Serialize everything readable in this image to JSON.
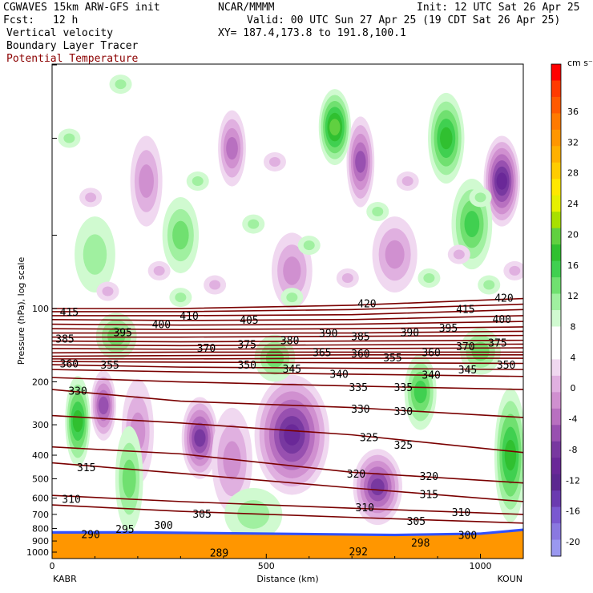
{
  "header": {
    "model": "CGWAVES 15km ARW-GFS init",
    "org": "NCAR/MMMM",
    "init": "Init: 12 UTC Sat 26 Apr 25",
    "fcst_label": "Fcst:",
    "fcst_value": "12 h",
    "valid": "Valid: 00 UTC Sun 27 Apr 25 (19 CDT Sat 26 Apr 25)",
    "xy": "XY= 187.4,173.8 to 191.8,100.1",
    "fields": [
      "Vertical velocity",
      "Boundary Layer Tracer",
      "Potential Temperature"
    ],
    "field_colors": [
      "#000000",
      "#000000",
      "#8b0000"
    ]
  },
  "chart_data": {
    "type": "heatmap",
    "xlabel": "Distance (km)",
    "ylabel": "Pressure (hPa), log scale",
    "xlim": [
      0,
      1100
    ],
    "x_ticks": [
      "0",
      "500",
      "1000"
    ],
    "x_tick_values": [
      0,
      500,
      1000
    ],
    "y_ticks": [
      "100",
      "200",
      "300",
      "400",
      "500",
      "600",
      "700",
      "800",
      "900",
      "1000"
    ],
    "y_tick_values": [
      100,
      200,
      300,
      400,
      500,
      600,
      700,
      800,
      900,
      1000
    ],
    "left_endpoint": "KABR",
    "right_endpoint": "KOUN",
    "colorbar": {
      "unit": "cm s⁻¹",
      "labels": [
        "36",
        "32",
        "28",
        "24",
        "20",
        "16",
        "12",
        "8",
        "4",
        "0",
        "-4",
        "-8",
        "-12",
        "-16",
        "-20"
      ],
      "colors": [
        "#ff0000",
        "#ff3a00",
        "#ff5a00",
        "#ff7a00",
        "#ff9600",
        "#ffb000",
        "#ffcc00",
        "#ffe800",
        "#e6f000",
        "#a8e000",
        "#60d040",
        "#30c030",
        "#40d050",
        "#70e070",
        "#a0f0a0",
        "#d0fad0",
        "#ffffff",
        "#ffffff",
        "#f0d8f0",
        "#e0b0e0",
        "#d090d0",
        "#b870c0",
        "#9850b0",
        "#7838a0",
        "#6a2898",
        "#5c2890",
        "#6a3ab0",
        "#7a58d0",
        "#8a78e0",
        "#9a98f0"
      ]
    },
    "theta_labels": [
      {
        "text": "415",
        "x": 40,
        "p": 104
      },
      {
        "text": "410",
        "x": 320,
        "p": 108
      },
      {
        "text": "405",
        "x": 460,
        "p": 112
      },
      {
        "text": "420",
        "x": 735,
        "p": 96
      },
      {
        "text": "415",
        "x": 965,
        "p": 101
      },
      {
        "text": "420",
        "x": 1055,
        "p": 91
      },
      {
        "text": "400",
        "x": 255,
        "p": 117
      },
      {
        "text": "400",
        "x": 1050,
        "p": 111
      },
      {
        "text": "395",
        "x": 165,
        "p": 126
      },
      {
        "text": "395",
        "x": 925,
        "p": 121
      },
      {
        "text": "390",
        "x": 645,
        "p": 127
      },
      {
        "text": "390",
        "x": 835,
        "p": 126
      },
      {
        "text": "385",
        "x": 30,
        "p": 134
      },
      {
        "text": "385",
        "x": 720,
        "p": 131
      },
      {
        "text": "380",
        "x": 555,
        "p": 136
      },
      {
        "text": "375",
        "x": 455,
        "p": 141
      },
      {
        "text": "375",
        "x": 1040,
        "p": 139
      },
      {
        "text": "370",
        "x": 360,
        "p": 146
      },
      {
        "text": "370",
        "x": 965,
        "p": 144
      },
      {
        "text": "365",
        "x": 630,
        "p": 152
      },
      {
        "text": "360",
        "x": 40,
        "p": 169
      },
      {
        "text": "360",
        "x": 720,
        "p": 154
      },
      {
        "text": "360",
        "x": 885,
        "p": 152
      },
      {
        "text": "355",
        "x": 135,
        "p": 171
      },
      {
        "text": "355",
        "x": 795,
        "p": 160
      },
      {
        "text": "350",
        "x": 455,
        "p": 171
      },
      {
        "text": "350",
        "x": 1060,
        "p": 171
      },
      {
        "text": "345",
        "x": 560,
        "p": 178
      },
      {
        "text": "345",
        "x": 970,
        "p": 179
      },
      {
        "text": "340",
        "x": 670,
        "p": 187
      },
      {
        "text": "340",
        "x": 885,
        "p": 188
      },
      {
        "text": "335",
        "x": 715,
        "p": 212
      },
      {
        "text": "335",
        "x": 820,
        "p": 212
      },
      {
        "text": "330",
        "x": 60,
        "p": 219
      },
      {
        "text": "330",
        "x": 720,
        "p": 260
      },
      {
        "text": "330",
        "x": 820,
        "p": 266
      },
      {
        "text": "325",
        "x": 740,
        "p": 340
      },
      {
        "text": "325",
        "x": 820,
        "p": 365
      },
      {
        "text": "320",
        "x": 710,
        "p": 480
      },
      {
        "text": "320",
        "x": 880,
        "p": 490
      },
      {
        "text": "315",
        "x": 80,
        "p": 452
      },
      {
        "text": "315",
        "x": 880,
        "p": 582
      },
      {
        "text": "310",
        "x": 45,
        "p": 610
      },
      {
        "text": "310",
        "x": 730,
        "p": 660
      },
      {
        "text": "310",
        "x": 955,
        "p": 690
      },
      {
        "text": "305",
        "x": 350,
        "p": 700
      },
      {
        "text": "305",
        "x": 850,
        "p": 750
      },
      {
        "text": "300",
        "x": 260,
        "p": 780
      },
      {
        "text": "300",
        "x": 970,
        "p": 855
      },
      {
        "text": "295",
        "x": 170,
        "p": 808
      },
      {
        "text": "290",
        "x": 90,
        "p": 850
      },
      {
        "text": "289",
        "x": 390,
        "p": 1010
      },
      {
        "text": "292",
        "x": 715,
        "p": 1000
      },
      {
        "text": "298",
        "x": 860,
        "p": 920
      }
    ],
    "theta_lines": [
      {
        "theta": 305,
        "x": [
          0,
          300,
          700,
          1100
        ],
        "p": [
          640,
          680,
          720,
          760
        ]
      },
      {
        "theta": 310,
        "x": [
          0,
          300,
          700,
          1100
        ],
        "p": [
          585,
          620,
          660,
          700
        ]
      },
      {
        "theta": 315,
        "x": [
          0,
          300,
          700,
          1100
        ],
        "p": [
          430,
          475,
          545,
          620
        ]
      },
      {
        "theta": 320,
        "x": [
          0,
          300,
          700,
          1100
        ],
        "p": [
          370,
          395,
          470,
          520
        ]
      },
      {
        "theta": 325,
        "x": [
          0,
          300,
          700,
          1100
        ],
        "p": [
          275,
          295,
          330,
          390
        ]
      },
      {
        "theta": 330,
        "x": [
          0,
          300,
          700,
          1100
        ],
        "p": [
          215,
          240,
          255,
          280
        ]
      },
      {
        "theta": 335,
        "x": [
          0,
          300,
          700,
          1100
        ],
        "p": [
          192,
          200,
          208,
          215
        ]
      },
      {
        "theta": 340,
        "x": [
          0,
          300,
          700,
          1100
        ],
        "p": [
          178,
          182,
          186,
          190
        ]
      },
      {
        "theta": 345,
        "x": [
          0,
          300,
          700,
          1100
        ],
        "p": [
          170,
          174,
          176,
          178
        ]
      },
      {
        "theta": 350,
        "x": [
          0,
          300,
          700,
          1100
        ],
        "p": [
          165,
          166,
          167,
          168
        ]
      },
      {
        "theta": 355,
        "x": [
          0,
          300,
          700,
          1100
        ],
        "p": [
          161,
          161,
          160,
          160
        ]
      },
      {
        "theta": 360,
        "x": [
          0,
          300,
          700,
          1100
        ],
        "p": [
          157,
          156,
          155,
          155
        ]
      },
      {
        "theta": 365,
        "x": [
          0,
          300,
          700,
          1100
        ],
        "p": [
          152,
          151,
          151,
          151
        ]
      },
      {
        "theta": 370,
        "x": [
          0,
          300,
          700,
          1100
        ],
        "p": [
          146,
          147,
          146,
          145
        ]
      },
      {
        "theta": 375,
        "x": [
          0,
          300,
          700,
          1100
        ],
        "p": [
          141,
          142,
          141,
          140
        ]
      },
      {
        "theta": 380,
        "x": [
          0,
          300,
          700,
          1100
        ],
        "p": [
          136,
          137,
          136,
          135
        ]
      },
      {
        "theta": 385,
        "x": [
          0,
          300,
          700,
          1100
        ],
        "p": [
          131,
          131,
          130,
          129
        ]
      },
      {
        "theta": 390,
        "x": [
          0,
          300,
          700,
          1100
        ],
        "p": [
          126,
          126,
          126,
          124
        ]
      },
      {
        "theta": 395,
        "x": [
          0,
          300,
          700,
          1100
        ],
        "p": [
          121,
          122,
          121,
          119
        ]
      },
      {
        "theta": 400,
        "x": [
          0,
          300,
          700,
          1100
        ],
        "p": [
          116,
          117,
          116,
          113
        ]
      },
      {
        "theta": 405,
        "x": [
          0,
          300,
          700,
          1100
        ],
        "p": [
          111,
          112,
          111,
          107
        ]
      },
      {
        "theta": 410,
        "x": [
          0,
          300,
          700,
          1100
        ],
        "p": [
          107,
          107,
          106,
          101
        ]
      },
      {
        "theta": 415,
        "x": [
          0,
          300,
          700,
          1100
        ],
        "p": [
          103,
          103,
          101,
          96
        ]
      },
      {
        "theta": 420,
        "x": [
          0,
          300,
          700,
          1100
        ],
        "p": [
          100,
          100,
          97,
          91
        ]
      }
    ],
    "blobs": [
      {
        "x": 120,
        "p": 250,
        "level": -7,
        "rx": 22,
        "rp": 0.18
      },
      {
        "x": 345,
        "p": 340,
        "level": -9,
        "rx": 35,
        "rp": 0.22
      },
      {
        "x": 560,
        "p": 330,
        "level": -11,
        "rx": 80,
        "rp": 0.35
      },
      {
        "x": 760,
        "p": 540,
        "level": -9,
        "rx": 50,
        "rp": 0.2
      },
      {
        "x": 200,
        "p": 320,
        "level": -5,
        "rx": 30,
        "rp": 0.3
      },
      {
        "x": 420,
        "p": 420,
        "level": -4,
        "rx": 40,
        "rp": 0.3
      },
      {
        "x": 60,
        "p": 290,
        "level": 7,
        "rx": 22,
        "rp": 0.25
      },
      {
        "x": 180,
        "p": 500,
        "level": 5,
        "rx": 25,
        "rp": 0.3
      },
      {
        "x": 860,
        "p": 220,
        "level": 6,
        "rx": 30,
        "rp": 0.2
      },
      {
        "x": 1070,
        "p": 400,
        "level": 7,
        "rx": 30,
        "rp": 0.4
      },
      {
        "x": 470,
        "p": 700,
        "level": 3,
        "rx": 60,
        "rp": 0.12
      },
      {
        "x": 1050,
        "p": 30,
        "level": -11,
        "rx": 35,
        "rp": 0.25
      },
      {
        "x": 720,
        "p": 25,
        "level": -8,
        "rx": 25,
        "rp": 0.25
      },
      {
        "x": 420,
        "p": 22,
        "level": -6,
        "rx": 25,
        "rp": 0.2
      },
      {
        "x": 660,
        "p": 18,
        "level": 9,
        "rx": 30,
        "rp": 0.2
      },
      {
        "x": 920,
        "p": 20,
        "level": 8,
        "rx": 35,
        "rp": 0.25
      },
      {
        "x": 980,
        "p": 45,
        "level": 6,
        "rx": 40,
        "rp": 0.25
      },
      {
        "x": 300,
        "p": 50,
        "level": 4,
        "rx": 35,
        "rp": 0.2
      },
      {
        "x": 100,
        "p": 60,
        "level": 3,
        "rx": 40,
        "rp": 0.2
      },
      {
        "x": 800,
        "p": 60,
        "level": -5,
        "rx": 45,
        "rp": 0.2
      },
      {
        "x": 560,
        "p": 70,
        "level": -4,
        "rx": 40,
        "rp": 0.2
      },
      {
        "x": 220,
        "p": 30,
        "level": -4,
        "rx": 30,
        "rp": 0.25
      },
      {
        "x": 520,
        "p": 160,
        "level": 4,
        "rx": 40,
        "rp": 0.1
      },
      {
        "x": 1000,
        "p": 150,
        "level": 4,
        "rx": 40,
        "rp": 0.1
      },
      {
        "x": 150,
        "p": 130,
        "level": 4,
        "rx": 40,
        "rp": 0.1
      }
    ],
    "boundary_layer_top_p": [
      820,
      820,
      830,
      840,
      830,
      800
    ],
    "boundary_layer_x": [
      0,
      200,
      500,
      800,
      1000,
      1100
    ]
  }
}
